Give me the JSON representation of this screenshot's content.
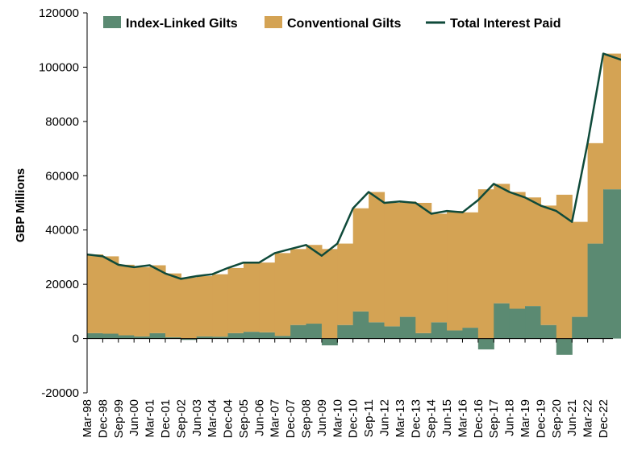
{
  "chart_data": {
    "type": "area",
    "title": "",
    "ylabel": "GBP Millions",
    "xlabel": "",
    "ylim": [
      -20000,
      120000
    ],
    "y_ticks": [
      "120000",
      "100000",
      "80000",
      "60000",
      "40000",
      "20000",
      "0",
      "-20000"
    ],
    "x_tick_labels": [
      "Mar-98",
      "Dec-98",
      "Sep-99",
      "Jun-00",
      "Mar-01",
      "Dec-01",
      "Sep-02",
      "Jun-03",
      "Mar-04",
      "Dec-04",
      "Sep-05",
      "Jun-06",
      "Mar-07",
      "Dec-07",
      "Sep-08",
      "Jun-09",
      "Mar-10",
      "Dec-10",
      "Sep-11",
      "Jun-12",
      "Mar-13",
      "Dec-13",
      "Sep-14",
      "Jun-15",
      "Mar-16",
      "Dec-16",
      "Sep-17",
      "Jun-18",
      "Mar-19",
      "Dec-19",
      "Sep-20",
      "Jun-21",
      "Mar-22",
      "Dec-22"
    ],
    "grid": false,
    "legend_position": "top",
    "colors": {
      "index_linked": "#5b8a72",
      "conventional": "#d4a354",
      "total_line": "#0f4a3a"
    },
    "series": [
      {
        "name": "Index-Linked Gilts",
        "kind": "stacked-area",
        "x": [
          "Mar-98",
          "Dec-98",
          "Sep-99",
          "Jun-00",
          "Mar-01",
          "Dec-01",
          "Sep-02",
          "Jun-03",
          "Mar-04",
          "Dec-04",
          "Sep-05",
          "Jun-06",
          "Mar-07",
          "Dec-07",
          "Sep-08",
          "Jun-09",
          "Mar-10",
          "Dec-10",
          "Sep-11",
          "Jun-12",
          "Mar-13",
          "Dec-13",
          "Sep-14",
          "Jun-15",
          "Mar-16",
          "Dec-16",
          "Sep-17",
          "Jun-18",
          "Mar-19",
          "Dec-19",
          "Sep-20",
          "Jun-21",
          "Mar-22",
          "Dec-22",
          "Jun-23"
        ],
        "values": [
          2000,
          1800,
          1200,
          800,
          2000,
          500,
          -500,
          800,
          700,
          2000,
          2500,
          2300,
          1000,
          5000,
          5500,
          -2500,
          5000,
          10000,
          6000,
          4500,
          8000,
          2000,
          6000,
          3000,
          4000,
          -4000,
          13000,
          11000,
          12000,
          5000,
          -6000,
          8000,
          35000,
          55000,
          51000
        ]
      },
      {
        "name": "Conventional Gilts",
        "kind": "stacked-area",
        "x": [
          "Mar-98",
          "Dec-98",
          "Sep-99",
          "Jun-00",
          "Mar-01",
          "Dec-01",
          "Sep-02",
          "Jun-03",
          "Mar-04",
          "Dec-04",
          "Sep-05",
          "Jun-06",
          "Mar-07",
          "Dec-07",
          "Sep-08",
          "Jun-09",
          "Mar-10",
          "Dec-10",
          "Sep-11",
          "Jun-12",
          "Mar-13",
          "Dec-13",
          "Sep-14",
          "Jun-15",
          "Mar-16",
          "Dec-16",
          "Sep-17",
          "Jun-18",
          "Mar-19",
          "Dec-19",
          "Sep-20",
          "Jun-21",
          "Mar-22",
          "Dec-22",
          "Jun-23"
        ],
        "values": [
          29000,
          28500,
          26000,
          25500,
          25000,
          23500,
          22500,
          22200,
          23000,
          24000,
          25500,
          25700,
          30500,
          28000,
          29000,
          33000,
          30000,
          38000,
          48000,
          45500,
          42500,
          48000,
          40000,
          44000,
          42500,
          55000,
          44000,
          43000,
          40000,
          44000,
          53000,
          35000,
          37000,
          50000,
          51000
        ]
      },
      {
        "name": "Total Interest Paid",
        "kind": "line",
        "x": [
          "Mar-98",
          "Dec-98",
          "Sep-99",
          "Jun-00",
          "Mar-01",
          "Dec-01",
          "Sep-02",
          "Jun-03",
          "Mar-04",
          "Dec-04",
          "Sep-05",
          "Jun-06",
          "Mar-07",
          "Dec-07",
          "Sep-08",
          "Jun-09",
          "Mar-10",
          "Dec-10",
          "Sep-11",
          "Jun-12",
          "Mar-13",
          "Dec-13",
          "Sep-14",
          "Jun-15",
          "Mar-16",
          "Dec-16",
          "Sep-17",
          "Jun-18",
          "Mar-19",
          "Dec-19",
          "Sep-20",
          "Jun-21",
          "Mar-22",
          "Dec-22",
          "Jun-23"
        ],
        "values": [
          31000,
          30300,
          27200,
          26300,
          27000,
          24000,
          22000,
          23000,
          23700,
          26000,
          28000,
          28000,
          31500,
          33000,
          34500,
          30500,
          35000,
          48000,
          54000,
          50000,
          50500,
          50000,
          46000,
          47000,
          46500,
          51000,
          57000,
          54000,
          52000,
          49000,
          47000,
          43000,
          72000,
          105000,
          102000
        ]
      }
    ]
  }
}
